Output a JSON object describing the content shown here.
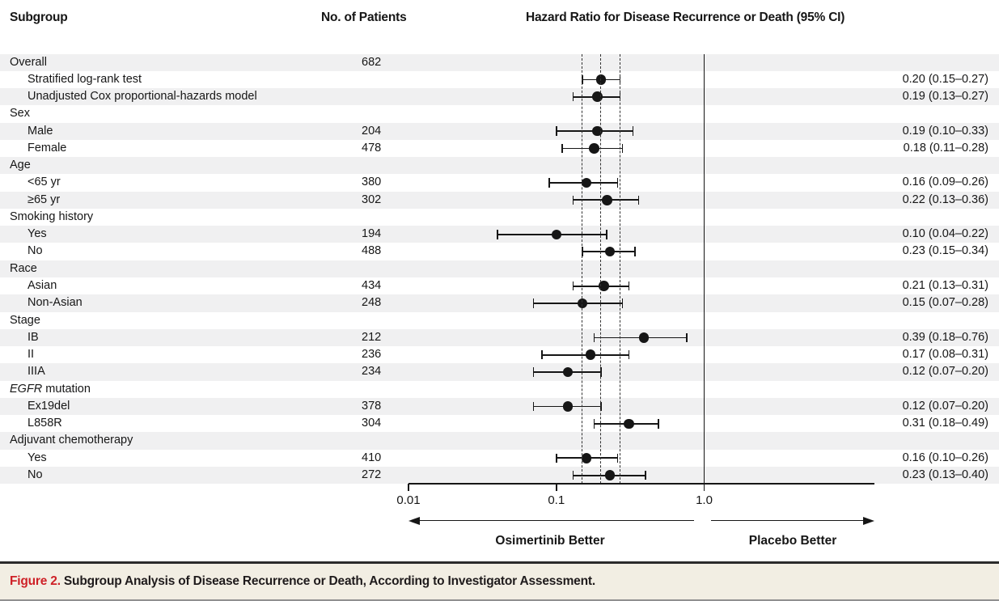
{
  "header": {
    "subgroup": "Subgroup",
    "patients": "No. of Patients",
    "hazard": "Hazard Ratio for Disease Recurrence or Death (95% CI)"
  },
  "chart_data": {
    "type": "forest",
    "title": "Hazard Ratio for Disease Recurrence or Death (95% CI)",
    "x_scale": "log10",
    "x_range": [
      0.01,
      13
    ],
    "x_ticks": [
      {
        "value": 0.01,
        "label": "0.01"
      },
      {
        "value": 0.1,
        "label": "0.1"
      },
      {
        "value": 1.0,
        "label": "1.0"
      }
    ],
    "reference_line": 1.0,
    "overall_ci_dashed_lines": [
      0.15,
      0.2,
      0.27
    ],
    "arrow_labels": {
      "left": "Osimertinib Better",
      "right": "Placebo Better"
    },
    "rows": [
      {
        "label": "Overall",
        "indent": false,
        "patients": "682",
        "shaded": true
      },
      {
        "label": "Stratified log-rank test",
        "indent": true,
        "shaded": false,
        "hr": 0.2,
        "lo": 0.15,
        "hi": 0.27,
        "hr_text": "0.20 (0.15–0.27)"
      },
      {
        "label": "Unadjusted Cox proportional-hazards model",
        "indent": true,
        "shaded": true,
        "hr": 0.19,
        "lo": 0.13,
        "hi": 0.27,
        "hr_text": "0.19 (0.13–0.27)"
      },
      {
        "label": "Sex",
        "indent": false,
        "shaded": false
      },
      {
        "label": "Male",
        "indent": true,
        "patients": "204",
        "shaded": true,
        "hr": 0.19,
        "lo": 0.1,
        "hi": 0.33,
        "hr_text": "0.19 (0.10–0.33)"
      },
      {
        "label": "Female",
        "indent": true,
        "patients": "478",
        "shaded": false,
        "hr": 0.18,
        "lo": 0.11,
        "hi": 0.28,
        "hr_text": "0.18 (0.11–0.28)"
      },
      {
        "label": "Age",
        "indent": false,
        "shaded": true
      },
      {
        "label": "<65 yr",
        "indent": true,
        "patients": "380",
        "shaded": false,
        "hr": 0.16,
        "lo": 0.09,
        "hi": 0.26,
        "hr_text": "0.16 (0.09–0.26)"
      },
      {
        "label": "≥65 yr",
        "indent": true,
        "patients": "302",
        "shaded": true,
        "hr": 0.22,
        "lo": 0.13,
        "hi": 0.36,
        "hr_text": "0.22 (0.13–0.36)"
      },
      {
        "label": "Smoking history",
        "indent": false,
        "shaded": false
      },
      {
        "label": "Yes",
        "indent": true,
        "patients": "194",
        "shaded": true,
        "hr": 0.1,
        "lo": 0.04,
        "hi": 0.22,
        "hr_text": "0.10 (0.04–0.22)"
      },
      {
        "label": "No",
        "indent": true,
        "patients": "488",
        "shaded": false,
        "hr": 0.23,
        "lo": 0.15,
        "hi": 0.34,
        "hr_text": "0.23 (0.15–0.34)"
      },
      {
        "label": "Race",
        "indent": false,
        "shaded": true
      },
      {
        "label": "Asian",
        "indent": true,
        "patients": "434",
        "shaded": false,
        "hr": 0.21,
        "lo": 0.13,
        "hi": 0.31,
        "hr_text": "0.21 (0.13–0.31)"
      },
      {
        "label": "Non-Asian",
        "indent": true,
        "patients": "248",
        "shaded": true,
        "hr": 0.15,
        "lo": 0.07,
        "hi": 0.28,
        "hr_text": "0.15 (0.07–0.28)"
      },
      {
        "label": "Stage",
        "indent": false,
        "shaded": false
      },
      {
        "label": "IB",
        "indent": true,
        "patients": "212",
        "shaded": true,
        "hr": 0.39,
        "lo": 0.18,
        "hi": 0.76,
        "hr_text": "0.39 (0.18–0.76)"
      },
      {
        "label": "II",
        "indent": true,
        "patients": "236",
        "shaded": false,
        "hr": 0.17,
        "lo": 0.08,
        "hi": 0.31,
        "hr_text": "0.17 (0.08–0.31)"
      },
      {
        "label": "IIIA",
        "indent": true,
        "patients": "234",
        "shaded": true,
        "hr": 0.12,
        "lo": 0.07,
        "hi": 0.2,
        "hr_text": "0.12 (0.07–0.20)"
      },
      {
        "em": "EGFR",
        "label": " mutation",
        "indent": false,
        "shaded": false
      },
      {
        "label": "Ex19del",
        "indent": true,
        "patients": "378",
        "shaded": true,
        "hr": 0.12,
        "lo": 0.07,
        "hi": 0.2,
        "hr_text": "0.12 (0.07–0.20)"
      },
      {
        "label": "L858R",
        "indent": true,
        "patients": "304",
        "shaded": false,
        "hr": 0.31,
        "lo": 0.18,
        "hi": 0.49,
        "hr_text": "0.31 (0.18–0.49)"
      },
      {
        "label": "Adjuvant chemotherapy",
        "indent": false,
        "shaded": true
      },
      {
        "label": "Yes",
        "indent": true,
        "patients": "410",
        "shaded": false,
        "hr": 0.16,
        "lo": 0.1,
        "hi": 0.26,
        "hr_text": "0.16 (0.10–0.26)"
      },
      {
        "label": "No",
        "indent": true,
        "patients": "272",
        "shaded": true,
        "hr": 0.23,
        "lo": 0.13,
        "hi": 0.4,
        "hr_text": "0.23 (0.13–0.40)"
      }
    ]
  },
  "caption": {
    "label": "Figure 2.",
    "text": "Subgroup Analysis of Disease Recurrence or Death, According to Investigator Assessment."
  },
  "colors": {
    "ink": "#161616",
    "band": "#f0f0f1",
    "caption_bg": "#f2eee3",
    "caption_rule": "#2b2b2b",
    "bottom_rule": "#909090",
    "accent_red": "#ce2127"
  }
}
